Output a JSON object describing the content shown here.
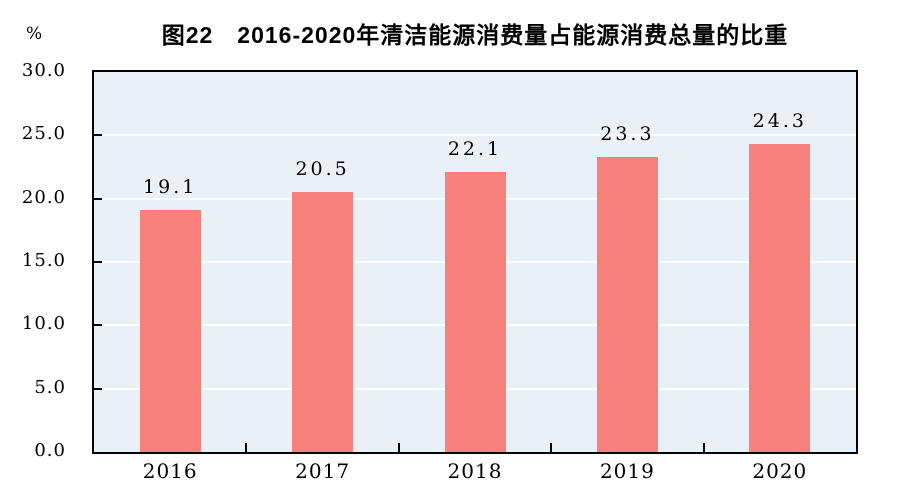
{
  "header": {
    "title": "图22　2016-2020年清洁能源消费量占能源消费总量的比重",
    "y_unit_label": "%"
  },
  "chart_data": {
    "type": "bar",
    "title": "图22　2016-2020年清洁能源消费量占能源消费总量的比重",
    "categories": [
      "2016",
      "2017",
      "2018",
      "2019",
      "2020"
    ],
    "values": [
      19.1,
      20.5,
      22.1,
      23.3,
      24.3
    ],
    "value_labels": [
      "19.1",
      "20.5",
      "22.1",
      "23.3",
      "24.3"
    ],
    "xlabel": "",
    "ylabel": "%",
    "ylim": [
      0,
      30
    ],
    "ytick_interval": 5,
    "ytick_labels": [
      "0.0",
      "5.0",
      "10.0",
      "15.0",
      "20.0",
      "25.0",
      "30.0"
    ],
    "grid": true,
    "legend": "none",
    "colors": {
      "bar_fill": "#f8807a",
      "plot_background": "#e9f1f7",
      "gridline": "#ffffff",
      "axis_border": "#000000",
      "text": "#000000"
    }
  }
}
